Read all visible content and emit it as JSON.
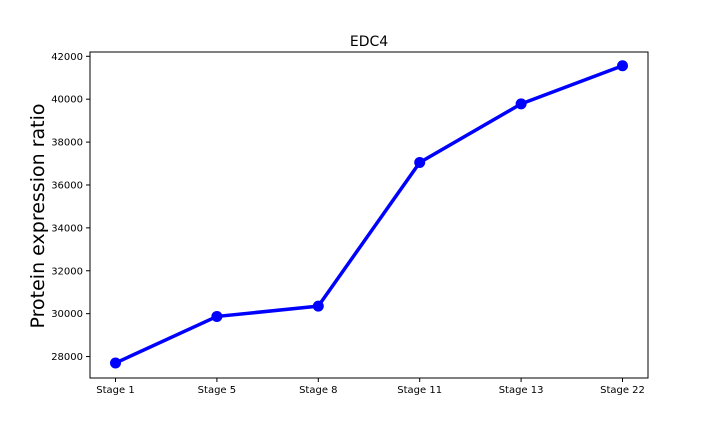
{
  "chart_data": {
    "type": "line",
    "title": "EDC4",
    "xlabel": "",
    "ylabel": "Protein expression ratio",
    "categories": [
      "Stage 1",
      "Stage 5",
      "Stage 8",
      "Stage 11",
      "Stage 13",
      "Stage 22"
    ],
    "series": [
      {
        "values": [
          27700,
          29870,
          30350,
          37050,
          39780,
          41560
        ],
        "color": "#0000ff"
      }
    ],
    "ylim": [
      27000,
      42200
    ],
    "yticks": [
      28000,
      30000,
      32000,
      34000,
      36000,
      38000,
      40000,
      42000
    ],
    "grid": false,
    "legend": "none"
  }
}
